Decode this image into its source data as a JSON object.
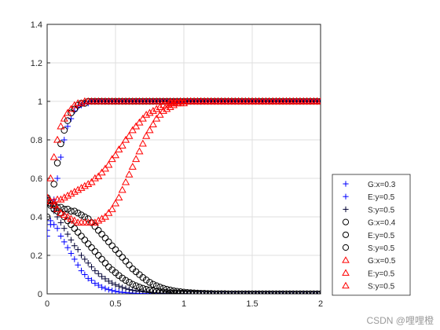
{
  "watermark": "CSDN @哩哩橙",
  "chart_data": {
    "type": "scatter",
    "xlim": [
      0,
      2
    ],
    "ylim": [
      0,
      1.4
    ],
    "xticks": [
      "0",
      "0.5",
      "1",
      "1.5",
      "2"
    ],
    "yticks": [
      "0",
      "0.2",
      "0.4",
      "0.6",
      "0.8",
      "1",
      "1.2",
      "1.4"
    ],
    "grid": true,
    "legend_position": "outside-right-bottom",
    "x": [
      0,
      0.025,
      0.05,
      0.075,
      0.1,
      0.125,
      0.15,
      0.175,
      0.2,
      0.225,
      0.25,
      0.275,
      0.3,
      0.325,
      0.35,
      0.375,
      0.4,
      0.425,
      0.45,
      0.475,
      0.5,
      0.525,
      0.55,
      0.575,
      0.6,
      0.625,
      0.65,
      0.675,
      0.7,
      0.725,
      0.75,
      0.775,
      0.8,
      0.825,
      0.85,
      0.875,
      0.9,
      0.925,
      0.95,
      0.975,
      1.0,
      1.025,
      1.05,
      1.075,
      1.1,
      1.125,
      1.15,
      1.175,
      1.2,
      1.225,
      1.25,
      1.275,
      1.3,
      1.325,
      1.35,
      1.375,
      1.4,
      1.425,
      1.45,
      1.475,
      1.5,
      1.525,
      1.55,
      1.575,
      1.6,
      1.625,
      1.65,
      1.675,
      1.7,
      1.725,
      1.75,
      1.775,
      1.8,
      1.825,
      1.85,
      1.875,
      1.9,
      1.925,
      1.95,
      1.975,
      2.0
    ],
    "series": [
      {
        "name": "G:x=0.3",
        "marker": "plus",
        "color": "#0000ff",
        "values": [
          0.3,
          0.38,
          0.49,
          0.6,
          0.71,
          0.8,
          0.87,
          0.91,
          0.95,
          0.97,
          0.98,
          0.99,
          0.99,
          1.0,
          1.0,
          1.0,
          1.0,
          1.0,
          1.0,
          1.0,
          1.0,
          1.0,
          1.0,
          1.0,
          1.0,
          1.0,
          1.0,
          1.0,
          1.0,
          1.0,
          1.0,
          1.0,
          1.0,
          1.0,
          1.0,
          1.0,
          1.0,
          1.0,
          1.0,
          1.0,
          1.0,
          1.0,
          1.0,
          1.0,
          1.0,
          1.0,
          1.0,
          1.0,
          1.0,
          1.0,
          1.0,
          1.0,
          1.0,
          1.0,
          1.0,
          1.0,
          1.0,
          1.0,
          1.0,
          1.0,
          1.0,
          1.0,
          1.0,
          1.0,
          1.0,
          1.0,
          1.0,
          1.0,
          1.0,
          1.0,
          1.0,
          1.0,
          1.0,
          1.0,
          1.0,
          1.0,
          1.0,
          1.0,
          1.0,
          1.0,
          1.0
        ]
      },
      {
        "name": "E:y=0.5",
        "marker": "plus",
        "color": "#0000ff",
        "values": [
          0.33,
          0.36,
          0.36,
          0.34,
          0.3,
          0.27,
          0.24,
          0.21,
          0.18,
          0.15,
          0.12,
          0.1,
          0.08,
          0.07,
          0.055,
          0.045,
          0.035,
          0.028,
          0.022,
          0.017,
          0.013,
          0.01,
          0.008,
          0.006,
          0.005,
          0.004,
          0.003,
          0.002,
          0.002,
          0.001,
          0.001,
          0.001,
          0.001,
          0,
          0,
          0,
          0,
          0,
          0,
          0,
          0,
          0,
          0,
          0,
          0,
          0,
          0,
          0,
          0,
          0,
          0,
          0,
          0,
          0,
          0,
          0,
          0,
          0,
          0,
          0,
          0,
          0,
          0,
          0,
          0,
          0,
          0,
          0,
          0,
          0,
          0,
          0,
          0,
          0,
          0,
          0,
          0,
          0,
          0,
          0,
          0
        ]
      },
      {
        "name": "S:y=0.5",
        "marker": "plus",
        "color": "#000033",
        "values": [
          0.5,
          0.47,
          0.43,
          0.4,
          0.37,
          0.34,
          0.31,
          0.28,
          0.25,
          0.23,
          0.2,
          0.18,
          0.16,
          0.14,
          0.12,
          0.105,
          0.09,
          0.078,
          0.066,
          0.056,
          0.047,
          0.04,
          0.033,
          0.028,
          0.023,
          0.019,
          0.016,
          0.013,
          0.011,
          0.009,
          0.007,
          0.006,
          0.005,
          0.004,
          0.003,
          0.003,
          0.002,
          0.002,
          0.001,
          0.001,
          0.001,
          0.001,
          0,
          0,
          0,
          0,
          0,
          0,
          0,
          0,
          0,
          0,
          0,
          0,
          0,
          0,
          0,
          0,
          0,
          0,
          0,
          0,
          0,
          0,
          0,
          0,
          0,
          0,
          0,
          0,
          0,
          0,
          0,
          0,
          0,
          0,
          0,
          0,
          0,
          0,
          0
        ]
      },
      {
        "name": "G:x=0.4",
        "marker": "circle",
        "color": "#000000",
        "values": [
          0.4,
          0.47,
          0.57,
          0.68,
          0.78,
          0.85,
          0.9,
          0.94,
          0.96,
          0.98,
          0.99,
          0.99,
          1.0,
          1.0,
          1.0,
          1.0,
          1.0,
          1.0,
          1.0,
          1.0,
          1.0,
          1.0,
          1.0,
          1.0,
          1.0,
          1.0,
          1.0,
          1.0,
          1.0,
          1.0,
          1.0,
          1.0,
          1.0,
          1.0,
          1.0,
          1.0,
          1.0,
          1.0,
          1.0,
          1.0,
          1.0,
          1.0,
          1.0,
          1.0,
          1.0,
          1.0,
          1.0,
          1.0,
          1.0,
          1.0,
          1.0,
          1.0,
          1.0,
          1.0,
          1.0,
          1.0,
          1.0,
          1.0,
          1.0,
          1.0,
          1.0,
          1.0,
          1.0,
          1.0,
          1.0,
          1.0,
          1.0,
          1.0,
          1.0,
          1.0,
          1.0,
          1.0,
          1.0,
          1.0,
          1.0,
          1.0,
          1.0,
          1.0,
          1.0,
          1.0,
          1.0
        ]
      },
      {
        "name": "E:y=0.5",
        "marker": "circle",
        "color": "#000000",
        "values": [
          0.48,
          0.46,
          0.44,
          0.43,
          0.42,
          0.4,
          0.38,
          0.36,
          0.34,
          0.32,
          0.3,
          0.28,
          0.26,
          0.24,
          0.22,
          0.2,
          0.18,
          0.16,
          0.14,
          0.125,
          0.11,
          0.095,
          0.082,
          0.07,
          0.06,
          0.05,
          0.042,
          0.035,
          0.029,
          0.024,
          0.02,
          0.016,
          0.013,
          0.011,
          0.009,
          0.007,
          0.006,
          0.005,
          0.004,
          0.003,
          0.003,
          0.002,
          0.002,
          0.001,
          0.001,
          0.001,
          0.001,
          0,
          0,
          0,
          0,
          0,
          0,
          0,
          0,
          0,
          0,
          0,
          0,
          0,
          0,
          0,
          0,
          0,
          0,
          0,
          0,
          0,
          0,
          0,
          0,
          0,
          0,
          0,
          0,
          0,
          0,
          0,
          0,
          0,
          0
        ]
      },
      {
        "name": "S:y=0.5",
        "marker": "circle",
        "color": "#000000",
        "values": [
          0.5,
          0.47,
          0.46,
          0.45,
          0.45,
          0.44,
          0.44,
          0.43,
          0.43,
          0.42,
          0.41,
          0.4,
          0.39,
          0.37,
          0.35,
          0.33,
          0.31,
          0.29,
          0.27,
          0.25,
          0.23,
          0.21,
          0.19,
          0.17,
          0.15,
          0.13,
          0.115,
          0.1,
          0.085,
          0.072,
          0.06,
          0.05,
          0.042,
          0.035,
          0.029,
          0.024,
          0.02,
          0.016,
          0.013,
          0.011,
          0.009,
          0.007,
          0.006,
          0.005,
          0.004,
          0.003,
          0.003,
          0.002,
          0.002,
          0.001,
          0.001,
          0.001,
          0.001,
          0,
          0,
          0,
          0,
          0,
          0,
          0,
          0,
          0,
          0,
          0,
          0,
          0,
          0,
          0,
          0,
          0,
          0,
          0,
          0,
          0,
          0,
          0,
          0,
          0,
          0,
          0,
          0
        ]
      },
      {
        "name": "G:x=0.5",
        "marker": "triangle",
        "color": "#ff0000",
        "values": [
          0.5,
          0.6,
          0.71,
          0.8,
          0.87,
          0.91,
          0.94,
          0.96,
          0.98,
          0.99,
          0.99,
          1.0,
          1.0,
          1.0,
          1.0,
          1.0,
          1.0,
          1.0,
          1.0,
          1.0,
          1.0,
          1.0,
          1.0,
          1.0,
          1.0,
          1.0,
          1.0,
          1.0,
          1.0,
          1.0,
          1.0,
          1.0,
          1.0,
          1.0,
          1.0,
          1.0,
          1.0,
          1.0,
          1.0,
          1.0,
          1.0,
          1.0,
          1.0,
          1.0,
          1.0,
          1.0,
          1.0,
          1.0,
          1.0,
          1.0,
          1.0,
          1.0,
          1.0,
          1.0,
          1.0,
          1.0,
          1.0,
          1.0,
          1.0,
          1.0,
          1.0,
          1.0,
          1.0,
          1.0,
          1.0,
          1.0,
          1.0,
          1.0,
          1.0,
          1.0,
          1.0,
          1.0,
          1.0,
          1.0,
          1.0,
          1.0,
          1.0,
          1.0,
          1.0,
          1.0,
          1.0
        ]
      },
      {
        "name": "E:y=0.5",
        "marker": "triangle",
        "color": "#ff0000",
        "values": [
          0.5,
          0.48,
          0.48,
          0.49,
          0.49,
          0.5,
          0.51,
          0.52,
          0.53,
          0.54,
          0.55,
          0.56,
          0.57,
          0.58,
          0.6,
          0.61,
          0.63,
          0.65,
          0.67,
          0.7,
          0.72,
          0.75,
          0.77,
          0.8,
          0.82,
          0.85,
          0.87,
          0.89,
          0.91,
          0.93,
          0.94,
          0.95,
          0.96,
          0.97,
          0.98,
          0.98,
          0.99,
          0.99,
          0.99,
          1.0,
          1.0,
          1.0,
          1.0,
          1.0,
          1.0,
          1.0,
          1.0,
          1.0,
          1.0,
          1.0,
          1.0,
          1.0,
          1.0,
          1.0,
          1.0,
          1.0,
          1.0,
          1.0,
          1.0,
          1.0,
          1.0,
          1.0,
          1.0,
          1.0,
          1.0,
          1.0,
          1.0,
          1.0,
          1.0,
          1.0,
          1.0,
          1.0,
          1.0,
          1.0,
          1.0,
          1.0,
          1.0,
          1.0,
          1.0,
          1.0,
          1.0
        ]
      },
      {
        "name": "S:y=0.5",
        "marker": "triangle",
        "color": "#ff0000",
        "values": [
          0.5,
          0.48,
          0.46,
          0.44,
          0.42,
          0.41,
          0.4,
          0.39,
          0.38,
          0.37,
          0.37,
          0.37,
          0.37,
          0.37,
          0.37,
          0.38,
          0.39,
          0.4,
          0.42,
          0.44,
          0.47,
          0.5,
          0.54,
          0.58,
          0.62,
          0.66,
          0.7,
          0.74,
          0.78,
          0.82,
          0.85,
          0.88,
          0.91,
          0.93,
          0.95,
          0.96,
          0.97,
          0.98,
          0.99,
          0.99,
          0.99,
          1.0,
          1.0,
          1.0,
          1.0,
          1.0,
          1.0,
          1.0,
          1.0,
          1.0,
          1.0,
          1.0,
          1.0,
          1.0,
          1.0,
          1.0,
          1.0,
          1.0,
          1.0,
          1.0,
          1.0,
          1.0,
          1.0,
          1.0,
          1.0,
          1.0,
          1.0,
          1.0,
          1.0,
          1.0,
          1.0,
          1.0,
          1.0,
          1.0,
          1.0,
          1.0,
          1.0,
          1.0,
          1.0,
          1.0,
          1.0
        ]
      }
    ]
  }
}
